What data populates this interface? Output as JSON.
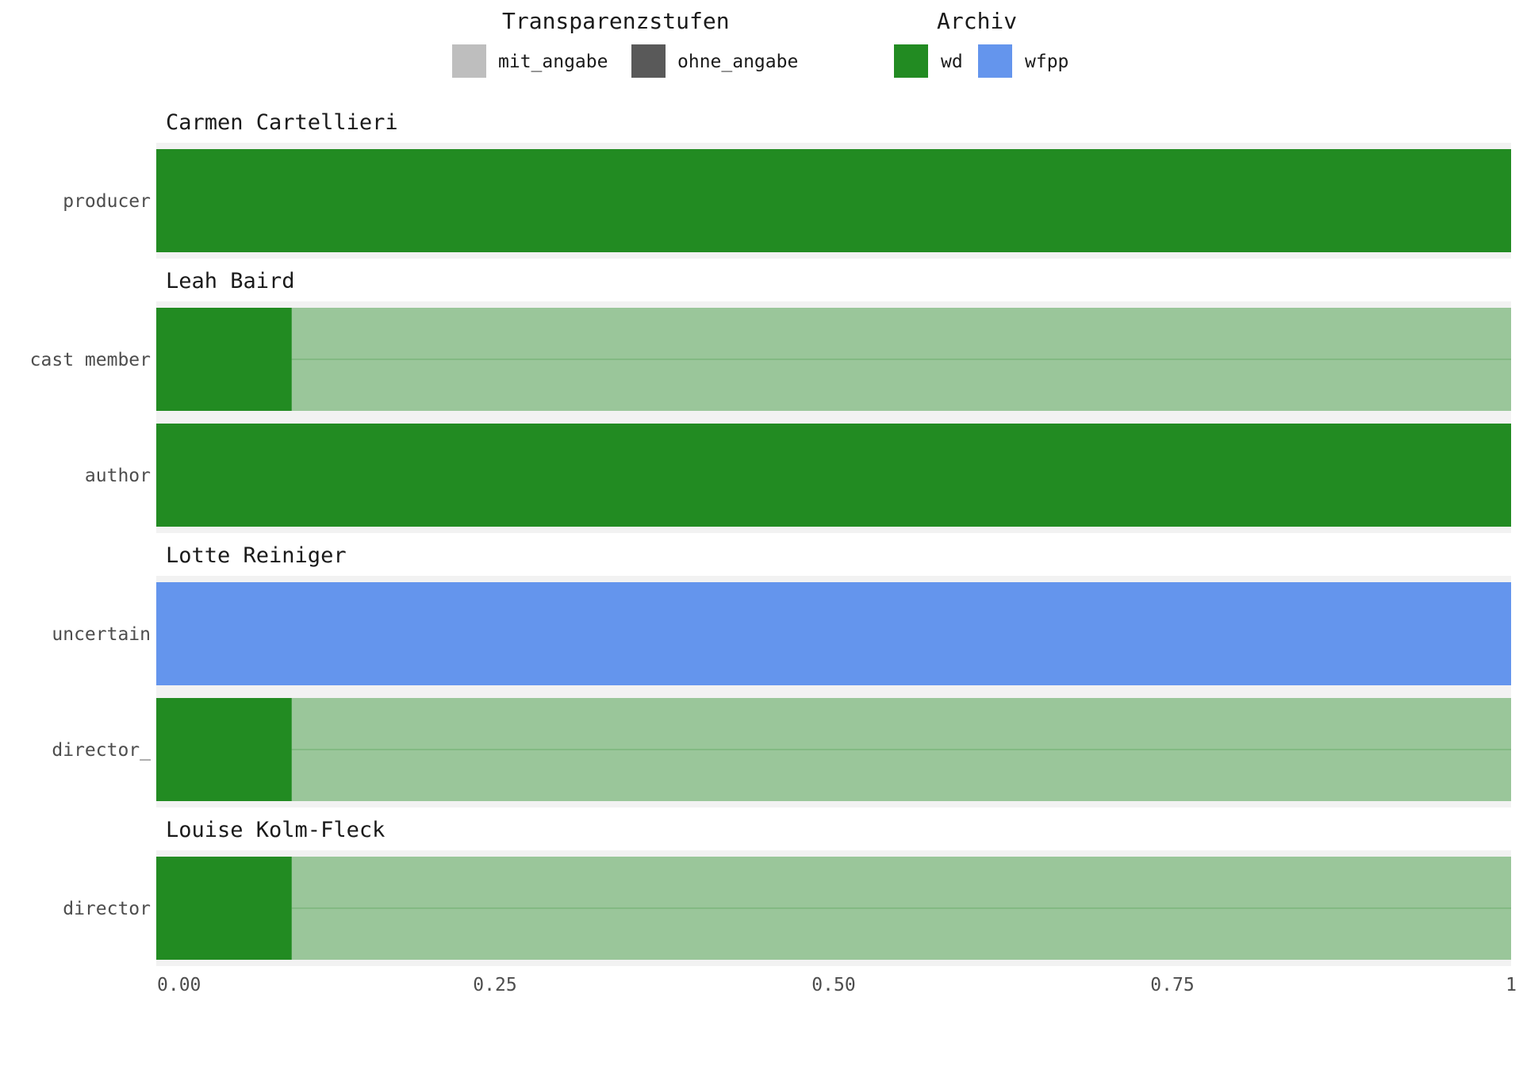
{
  "chart_data": {
    "type": "bar",
    "orientation": "horizontal",
    "stacked": true,
    "legends": [
      {
        "title": "Transparenzstufen",
        "items": [
          {
            "label": "mit_angabe",
            "color": "#bebebe"
          },
          {
            "label": "ohne_angabe",
            "color": "#595959"
          }
        ]
      },
      {
        "title": "Archiv",
        "items": [
          {
            "label": "wd",
            "color": "#228b22"
          },
          {
            "label": "wfpp",
            "color": "#6495ed"
          }
        ]
      }
    ],
    "legend_position": "top",
    "xlim": [
      0,
      1
    ],
    "x_ticks": [
      "0.00",
      "0.25",
      "0.50",
      "0.75",
      "1"
    ],
    "x_tick_values": [
      0,
      0.25,
      0.5,
      0.75,
      1
    ],
    "grid": true,
    "facets": [
      {
        "title": "Carmen Cartellieri",
        "categories": [
          {
            "label": "producer",
            "segments": [
              {
                "archiv": "wd",
                "transparency": "ohne_angabe",
                "value": 1.0
              }
            ]
          }
        ]
      },
      {
        "title": "Leah Baird",
        "categories": [
          {
            "label": "cast member",
            "segments": [
              {
                "archiv": "wd",
                "transparency": "ohne_angabe",
                "value": 0.1
              },
              {
                "archiv": "wd",
                "transparency": "mit_angabe",
                "value": 0.9
              }
            ]
          },
          {
            "label": "author",
            "segments": [
              {
                "archiv": "wd",
                "transparency": "ohne_angabe",
                "value": 1.0
              }
            ]
          }
        ]
      },
      {
        "title": "Lotte Reiniger",
        "categories": [
          {
            "label": "uncertain",
            "segments": [
              {
                "archiv": "wfpp",
                "transparency": "ohne_angabe",
                "value": 1.0
              }
            ]
          },
          {
            "label": "director_",
            "segments": [
              {
                "archiv": "wd",
                "transparency": "ohne_angabe",
                "value": 0.1
              },
              {
                "archiv": "wd",
                "transparency": "mit_angabe",
                "value": 0.9
              }
            ]
          }
        ]
      },
      {
        "title": "Louise Kolm-Fleck",
        "categories": [
          {
            "label": "director",
            "segments": [
              {
                "archiv": "wd",
                "transparency": "ohne_angabe",
                "value": 0.1
              },
              {
                "archiv": "wd",
                "transparency": "mit_angabe",
                "value": 0.9
              }
            ]
          }
        ]
      }
    ]
  }
}
